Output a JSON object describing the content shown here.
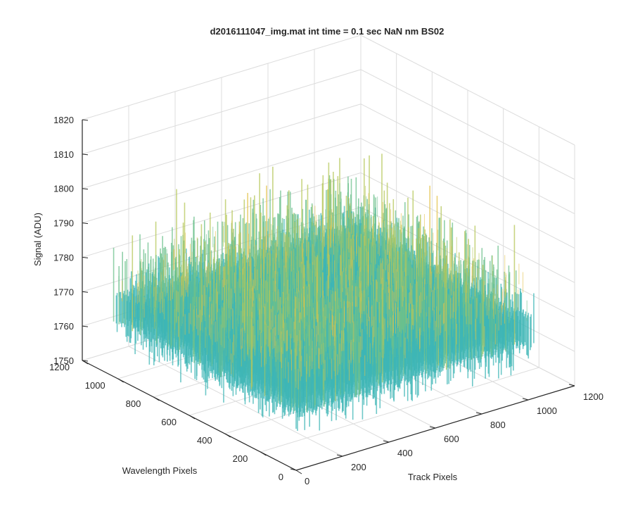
{
  "chart_data": {
    "type": "surface",
    "title": "d2016111047_img.mat int time = 0.1 sec  NaN nm BS02",
    "xlabel": "Track Pixels",
    "ylabel": "Wavelength Pixels",
    "zlabel": "Signal (ADU)",
    "xlim": [
      0,
      1200
    ],
    "ylim": [
      0,
      1200
    ],
    "zlim": [
      1750,
      1820
    ],
    "x_ticks": [
      "0",
      "200",
      "400",
      "600",
      "800",
      "1000",
      "1200"
    ],
    "y_ticks": [
      "0",
      "200",
      "400",
      "600",
      "800",
      "1000",
      "1200"
    ],
    "z_ticks": [
      "1750",
      "1760",
      "1770",
      "1780",
      "1790",
      "1800",
      "1810",
      "1820"
    ],
    "grid": true,
    "surface": {
      "x_range": [
        0,
        1024
      ],
      "y_range": [
        0,
        1024
      ],
      "mean": 1770,
      "noise_min": 1755,
      "noise_max": 1810
    },
    "colormap": [
      "#0072bd",
      "#1a9ed9",
      "#3db5b5",
      "#6cc08c",
      "#b6c75a",
      "#e3c24a"
    ]
  }
}
